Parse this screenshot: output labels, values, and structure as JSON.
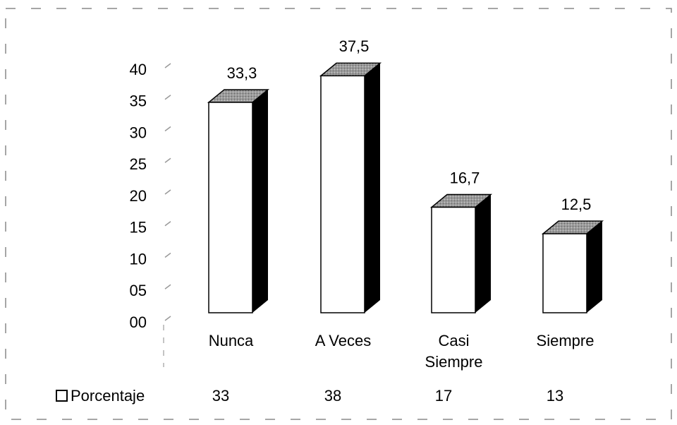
{
  "chart_data": {
    "type": "bar",
    "categories": [
      "Nunca",
      "A Veces",
      "Casi Siempre",
      "Siempre"
    ],
    "series": [
      {
        "name": "Porcentaje",
        "color": "#ffffff",
        "values": [
          33.3,
          37.5,
          16.7,
          12.5
        ],
        "value_labels": [
          "33,3",
          "37,5",
          "16,7",
          "12,5"
        ]
      }
    ],
    "ylim": [
      0,
      40
    ],
    "yticks": [
      {
        "value": 0,
        "label": "00"
      },
      {
        "value": 5,
        "label": "05"
      },
      10,
      15,
      20,
      25,
      30,
      35,
      40
    ],
    "data_table": [
      33,
      38,
      17,
      13
    ]
  }
}
